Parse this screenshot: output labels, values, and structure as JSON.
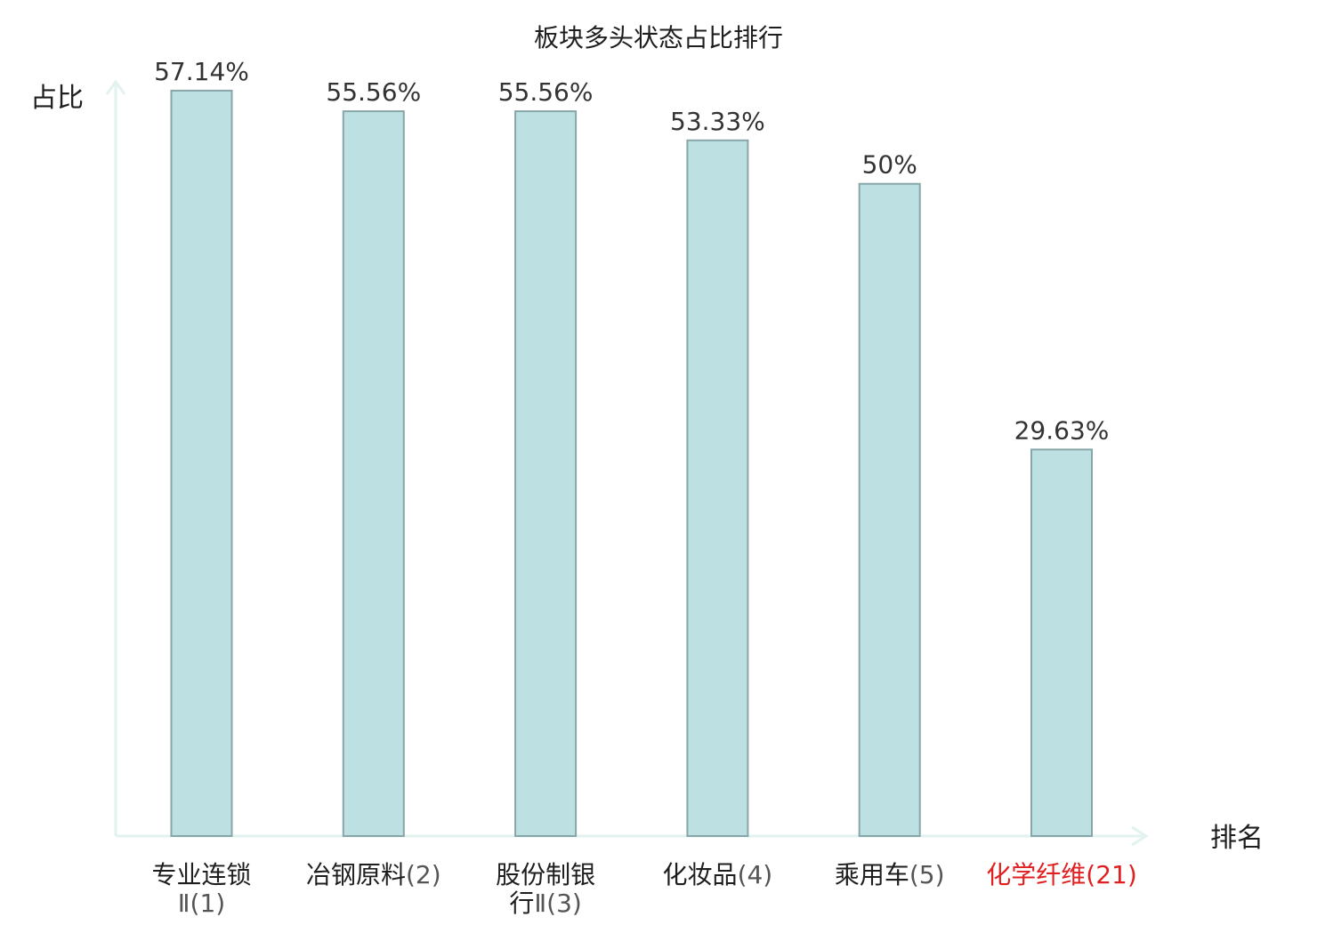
{
  "chart_data": {
    "type": "bar",
    "title": "板块多头状态占比排行",
    "ylabel": "占比",
    "xlabel": "排名",
    "categories": [
      {
        "lines": [
          {
            "name": "专业连锁",
            "rank": ""
          },
          {
            "name": "",
            "rank": "Ⅱ(1)"
          }
        ],
        "highlight": false
      },
      {
        "lines": [
          {
            "name": "冶钢原料",
            "rank": "(2)"
          }
        ],
        "highlight": false
      },
      {
        "lines": [
          {
            "name": "股份制银",
            "rank": ""
          },
          {
            "name": "行",
            "rank": "Ⅱ(3)"
          }
        ],
        "highlight": false
      },
      {
        "lines": [
          {
            "name": "化妆品",
            "rank": "(4)"
          }
        ],
        "highlight": false
      },
      {
        "lines": [
          {
            "name": "乘用车",
            "rank": "(5)"
          }
        ],
        "highlight": false
      },
      {
        "lines": [
          {
            "name": "化学纤维",
            "rank": "(21)"
          }
        ],
        "highlight": true
      }
    ],
    "values": [
      57.14,
      55.56,
      55.56,
      53.33,
      50,
      29.63
    ],
    "value_labels": [
      "57.14%",
      "55.56%",
      "55.56%",
      "53.33%",
      "50%",
      "29.63%"
    ],
    "ylim": [
      0,
      60
    ],
    "grid": false,
    "legend": "none",
    "colors": {
      "bar_fill": "#bde1e3",
      "bar_stroke": "#88a6a8",
      "axis": "#e2f2ef",
      "highlight_text": "#e02020"
    }
  }
}
